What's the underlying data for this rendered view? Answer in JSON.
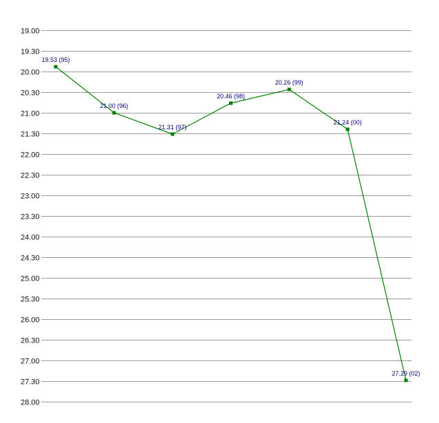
{
  "chart_data": {
    "type": "line",
    "title": "",
    "xlabel": "",
    "ylabel": "",
    "y_axis": {
      "inverted": true,
      "range": [
        19.0,
        28.0
      ],
      "tick_labels": [
        "19.00",
        "19.30",
        "20.00",
        "20.30",
        "21.00",
        "21.30",
        "22.00",
        "22.30",
        "23.00",
        "23.30",
        "24.00",
        "24.30",
        "25.00",
        "25.30",
        "26.00",
        "26.30",
        "27.00",
        "27.30",
        "28.00"
      ],
      "tick_values": [
        19.0,
        19.5,
        20.0,
        20.5,
        21.0,
        21.5,
        22.0,
        22.5,
        23.0,
        23.5,
        24.0,
        24.5,
        25.0,
        25.5,
        26.0,
        26.5,
        27.0,
        27.5,
        28.0
      ]
    },
    "grid": "horizontal",
    "series": [
      {
        "color": "#008000",
        "points": [
          {
            "label": "19.53 (95)",
            "y": 19.883
          },
          {
            "label": "21.00 (96)",
            "y": 21.0
          },
          {
            "label": "21.31 (97)",
            "y": 21.517
          },
          {
            "label": "20.46 (98)",
            "y": 20.767
          },
          {
            "label": "20.26 (99)",
            "y": 20.433
          },
          {
            "label": "21.24 (00)",
            "y": 21.4
          },
          {
            "label": "27.29 (02)",
            "y": 27.483
          }
        ]
      }
    ],
    "colors": {
      "line": "#008000",
      "marker": "#008000",
      "data_label": "#000080",
      "grid": "#999999",
      "tick_label": "#111111"
    }
  }
}
